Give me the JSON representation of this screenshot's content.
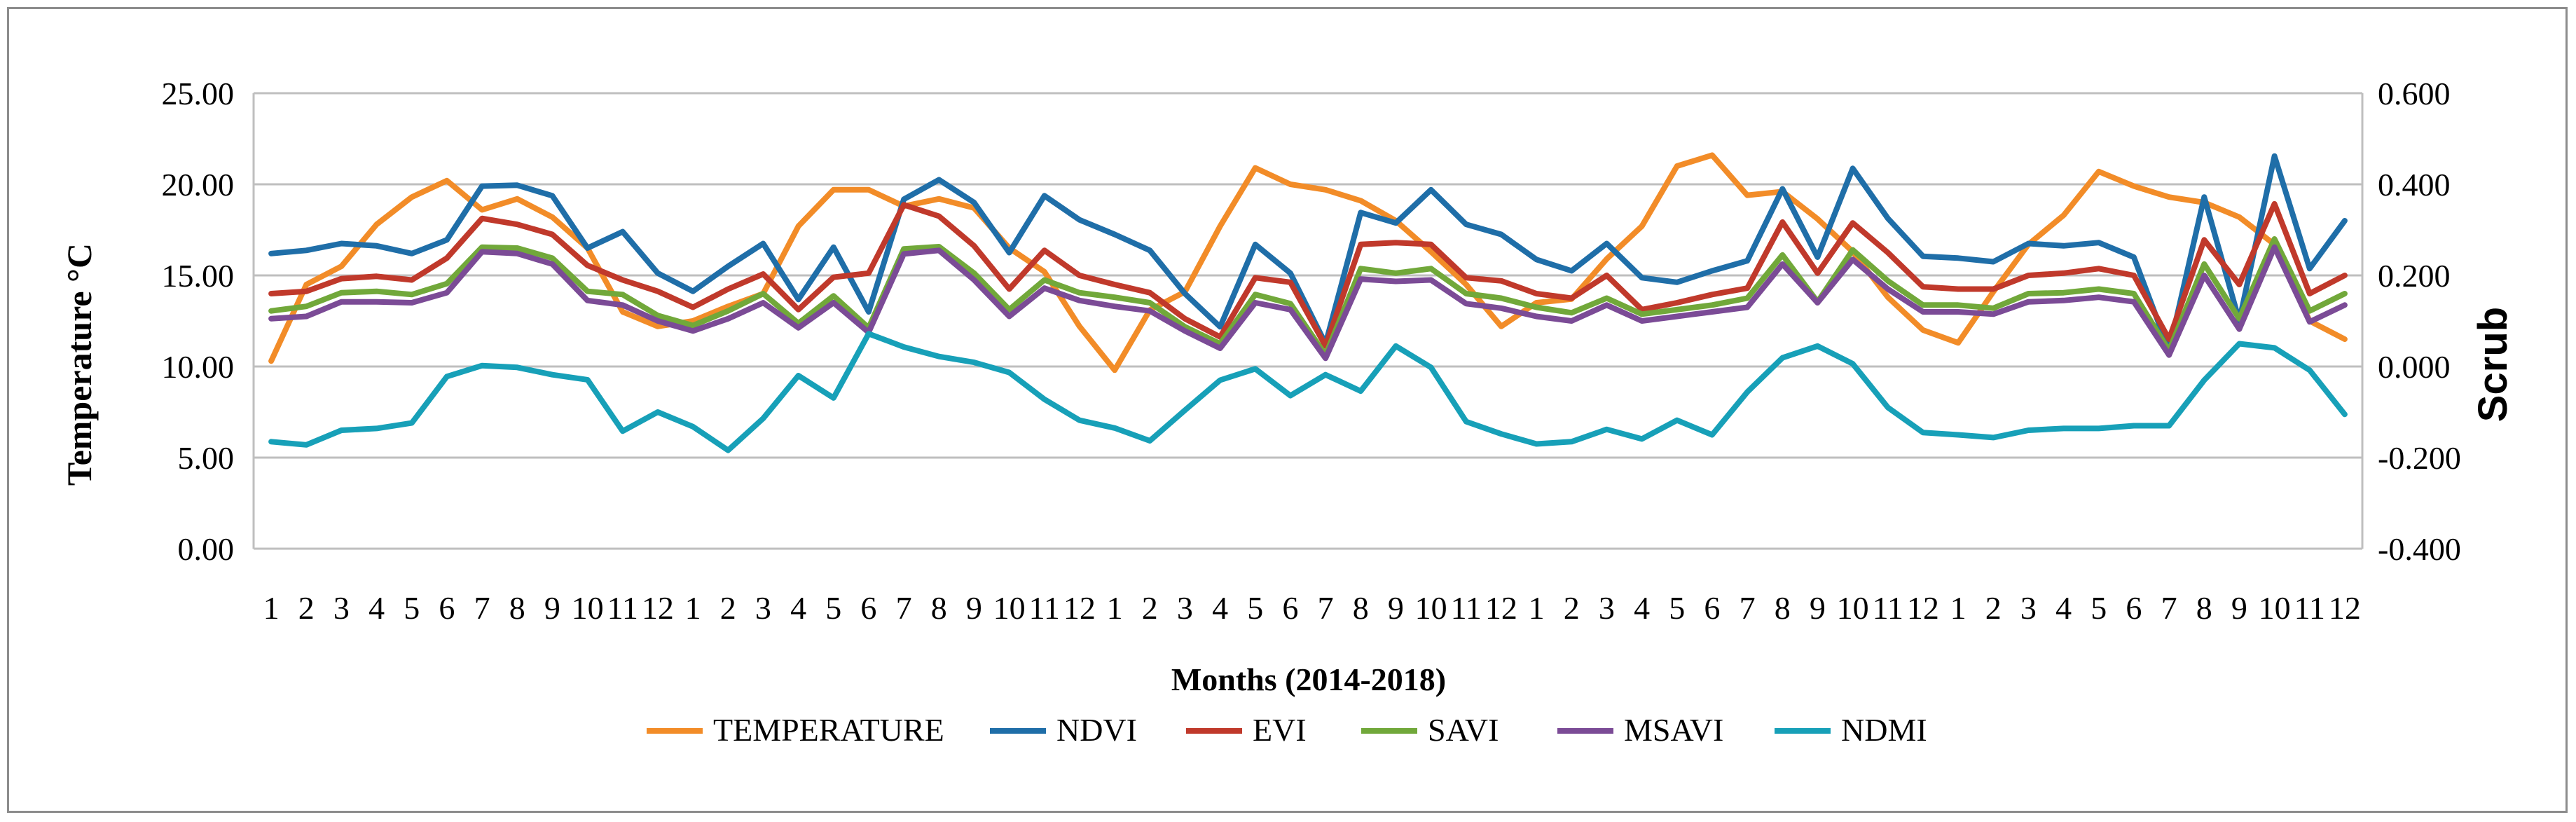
{
  "chart_data": {
    "type": "line",
    "title": "",
    "xlabel": "Months (2014-2018)",
    "ylabel_left": "Temperature °C",
    "ylabel_right": "Scrub",
    "ylim_left": [
      0,
      25
    ],
    "ylim_right": [
      -0.4,
      0.6
    ],
    "yticks_left": [
      "0.00",
      "5.00",
      "10.00",
      "15.00",
      "20.00",
      "25.00"
    ],
    "yticks_right": [
      "-0.400",
      "-0.200",
      "0.000",
      "0.200",
      "0.400",
      "0.600"
    ],
    "categories": [
      "1",
      "2",
      "3",
      "4",
      "5",
      "6",
      "7",
      "8",
      "9",
      "10",
      "11",
      "12",
      "1",
      "2",
      "3",
      "4",
      "5",
      "6",
      "7",
      "8",
      "9",
      "10",
      "11",
      "12",
      "1",
      "2",
      "3",
      "4",
      "5",
      "6",
      "7",
      "8",
      "9",
      "10",
      "11",
      "12",
      "1",
      "2",
      "3",
      "4",
      "5",
      "6",
      "7",
      "8",
      "9",
      "10",
      "11",
      "12",
      "1",
      "2",
      "3",
      "4",
      "5",
      "6",
      "7",
      "8",
      "9",
      "10",
      "11",
      "12"
    ],
    "grid": "horizontal",
    "legend_position": "bottom",
    "series": [
      {
        "name": "TEMPERATURE",
        "axis": "left",
        "color": "#F28C28",
        "values": [
          10.3,
          14.5,
          15.5,
          17.8,
          19.3,
          20.2,
          18.6,
          19.2,
          18.2,
          16.5,
          13.0,
          12.2,
          12.5,
          13.3,
          14.0,
          17.7,
          19.7,
          19.7,
          18.8,
          19.2,
          18.7,
          16.5,
          15.2,
          12.2,
          9.8,
          13.1,
          14.1,
          17.7,
          20.9,
          20.0,
          19.7,
          19.1,
          18.0,
          16.3,
          14.5,
          12.2,
          13.5,
          13.7,
          15.9,
          17.7,
          21.0,
          21.6,
          19.4,
          19.6,
          18.1,
          16.3,
          13.8,
          12.0,
          11.3,
          14.1,
          16.7,
          18.3,
          20.7,
          19.9,
          19.3,
          19.0,
          18.2,
          16.7,
          12.5,
          11.5
        ]
      },
      {
        "name": "NDVI",
        "axis": "right",
        "color": "#1F6EA8",
        "values": [
          0.248,
          0.255,
          0.27,
          0.265,
          0.248,
          0.278,
          0.396,
          0.398,
          0.375,
          0.26,
          0.296,
          0.205,
          0.165,
          0.22,
          0.27,
          0.147,
          0.262,
          0.12,
          0.367,
          0.41,
          0.36,
          0.25,
          0.375,
          0.322,
          0.29,
          0.255,
          0.16,
          0.087,
          0.268,
          0.205,
          0.05,
          0.338,
          0.315,
          0.388,
          0.312,
          0.29,
          0.235,
          0.21,
          0.27,
          0.195,
          0.185,
          0.21,
          0.232,
          0.39,
          0.24,
          0.435,
          0.325,
          0.242,
          0.238,
          0.23,
          0.27,
          0.265,
          0.272,
          0.24,
          0.035,
          0.372,
          0.1,
          0.462,
          0.215,
          0.32
        ]
      },
      {
        "name": "EVI",
        "axis": "right",
        "color": "#C0392B",
        "values": [
          0.16,
          0.165,
          0.193,
          0.198,
          0.19,
          0.238,
          0.325,
          0.312,
          0.29,
          0.222,
          0.19,
          0.165,
          0.13,
          0.17,
          0.203,
          0.125,
          0.196,
          0.205,
          0.355,
          0.33,
          0.265,
          0.17,
          0.255,
          0.2,
          0.18,
          0.162,
          0.105,
          0.065,
          0.195,
          0.185,
          0.045,
          0.268,
          0.272,
          0.268,
          0.195,
          0.188,
          0.16,
          0.15,
          0.2,
          0.125,
          0.14,
          0.158,
          0.172,
          0.317,
          0.205,
          0.315,
          0.25,
          0.175,
          0.17,
          0.17,
          0.2,
          0.205,
          0.215,
          0.2,
          0.06,
          0.278,
          0.18,
          0.357,
          0.16,
          0.2
        ]
      },
      {
        "name": "SAVI",
        "axis": "right",
        "color": "#71A83A",
        "values": [
          0.122,
          0.132,
          0.162,
          0.165,
          0.158,
          0.182,
          0.262,
          0.26,
          0.238,
          0.165,
          0.158,
          0.112,
          0.09,
          0.122,
          0.16,
          0.095,
          0.155,
          0.085,
          0.258,
          0.263,
          0.205,
          0.125,
          0.19,
          0.162,
          0.152,
          0.14,
          0.087,
          0.05,
          0.158,
          0.138,
          0.025,
          0.215,
          0.205,
          0.215,
          0.16,
          0.15,
          0.13,
          0.118,
          0.15,
          0.115,
          0.125,
          0.135,
          0.15,
          0.245,
          0.142,
          0.256,
          0.188,
          0.135,
          0.135,
          0.128,
          0.16,
          0.162,
          0.17,
          0.16,
          0.035,
          0.225,
          0.105,
          0.28,
          0.122,
          0.16
        ]
      },
      {
        "name": "MSAVI",
        "axis": "right",
        "color": "#7B4B96",
        "values": [
          0.105,
          0.11,
          0.142,
          0.142,
          0.14,
          0.162,
          0.252,
          0.248,
          0.225,
          0.145,
          0.135,
          0.1,
          0.078,
          0.105,
          0.14,
          0.085,
          0.14,
          0.075,
          0.247,
          0.255,
          0.19,
          0.11,
          0.172,
          0.145,
          0.132,
          0.122,
          0.078,
          0.04,
          0.14,
          0.125,
          0.018,
          0.192,
          0.187,
          0.19,
          0.138,
          0.128,
          0.11,
          0.1,
          0.135,
          0.1,
          0.11,
          0.12,
          0.13,
          0.225,
          0.14,
          0.235,
          0.17,
          0.12,
          0.12,
          0.115,
          0.142,
          0.145,
          0.152,
          0.142,
          0.025,
          0.2,
          0.082,
          0.262,
          0.098,
          0.135
        ]
      },
      {
        "name": "NDMI",
        "axis": "right",
        "color": "#17A0B8",
        "values": [
          -0.165,
          -0.172,
          -0.14,
          -0.136,
          -0.124,
          -0.022,
          0.002,
          -0.002,
          -0.018,
          -0.029,
          -0.142,
          -0.1,
          -0.132,
          -0.184,
          -0.114,
          -0.02,
          -0.069,
          0.072,
          0.043,
          0.022,
          0.009,
          -0.013,
          -0.072,
          -0.118,
          -0.135,
          -0.163,
          -0.096,
          -0.03,
          -0.005,
          -0.064,
          -0.018,
          -0.054,
          0.045,
          -0.002,
          -0.121,
          -0.148,
          -0.17,
          -0.165,
          -0.138,
          -0.159,
          -0.118,
          -0.15,
          -0.056,
          0.019,
          0.045,
          0.006,
          -0.09,
          -0.145,
          -0.15,
          -0.156,
          -0.14,
          -0.136,
          -0.136,
          -0.13,
          -0.13,
          -0.03,
          0.05,
          0.041,
          -0.008,
          -0.105
        ]
      }
    ]
  }
}
